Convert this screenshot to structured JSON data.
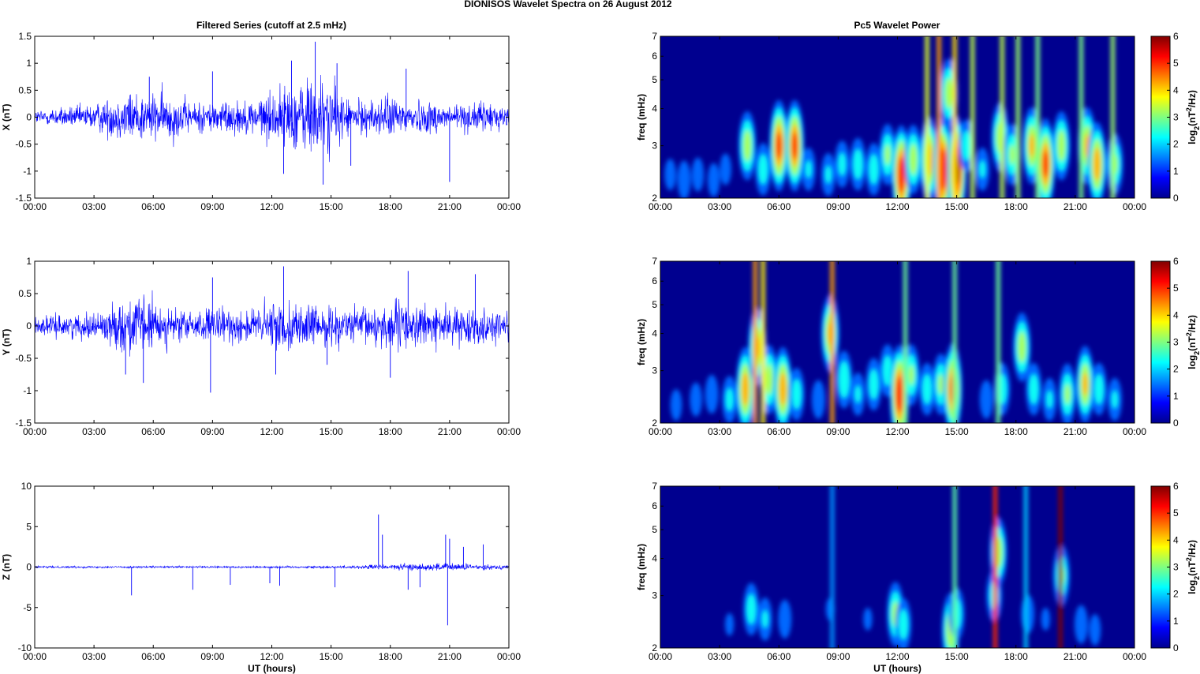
{
  "figure": {
    "suptitle": "DIONISOS Wavelet Spectra on 26 August    2012",
    "left_title": "Filtered Series (cutoff at 2.5 mHz)",
    "right_title": "Pc5 Wavelet Power",
    "xlabel": "UT (hours)"
  },
  "chart_data": [
    {
      "type": "line",
      "name": "x-series",
      "ylabel": "X (nT)",
      "xlim": [
        "00:00",
        "24:00"
      ],
      "xticks": [
        "00:00",
        "03:00",
        "06:00",
        "09:00",
        "12:00",
        "15:00",
        "18:00",
        "21:00",
        "00:00"
      ],
      "ylim": [
        -1.5,
        1.5
      ],
      "yticks": [
        "-1.5",
        "-1",
        "-0.5",
        "0",
        "0.5",
        "1",
        "1.5"
      ],
      "yticks_values": [
        -1.5,
        -1,
        -0.5,
        0,
        0.5,
        1,
        1.5
      ],
      "line_color": "#0000ff",
      "envelope": [
        [
          0,
          0.15
        ],
        [
          1,
          0.2
        ],
        [
          2,
          0.22
        ],
        [
          3,
          0.28
        ],
        [
          4,
          0.45
        ],
        [
          5,
          0.55
        ],
        [
          6,
          0.5
        ],
        [
          7,
          0.5
        ],
        [
          8,
          0.3
        ],
        [
          9,
          0.35
        ],
        [
          10,
          0.35
        ],
        [
          11,
          0.35
        ],
        [
          12,
          0.55
        ],
        [
          13,
          0.7
        ],
        [
          14,
          0.9
        ],
        [
          15,
          0.75
        ],
        [
          16,
          0.35
        ],
        [
          17,
          0.35
        ],
        [
          18,
          0.45
        ],
        [
          19,
          0.35
        ],
        [
          20,
          0.35
        ],
        [
          21,
          0.3
        ],
        [
          22,
          0.3
        ],
        [
          23,
          0.3
        ],
        [
          24,
          0.25
        ]
      ],
      "spikes": [
        [
          12.6,
          -1.05
        ],
        [
          14.2,
          1.4
        ],
        [
          14.6,
          -1.25
        ],
        [
          15.3,
          1.0
        ],
        [
          21.0,
          -1.2
        ],
        [
          9.0,
          0.85
        ],
        [
          5.8,
          0.75
        ],
        [
          13.0,
          1.05
        ],
        [
          16.0,
          -0.9
        ],
        [
          18.8,
          0.9
        ]
      ]
    },
    {
      "type": "line",
      "name": "y-series",
      "ylabel": "Y (nT)",
      "xlim": [
        "00:00",
        "24:00"
      ],
      "xticks": [
        "00:00",
        "03:00",
        "06:00",
        "09:00",
        "12:00",
        "15:00",
        "18:00",
        "21:00",
        "00:00"
      ],
      "ylim": [
        -1.5,
        1.0
      ],
      "yticks": [
        "-1.5",
        "-1",
        "-0.5",
        "0",
        "0.5",
        "1"
      ],
      "yticks_values": [
        -1.5,
        -1,
        -0.5,
        0,
        0.5,
        1
      ],
      "line_color": "#0000ff",
      "envelope": [
        [
          0,
          0.15
        ],
        [
          1,
          0.18
        ],
        [
          2,
          0.2
        ],
        [
          3,
          0.22
        ],
        [
          4,
          0.35
        ],
        [
          5,
          0.55
        ],
        [
          6,
          0.45
        ],
        [
          7,
          0.3
        ],
        [
          8,
          0.25
        ],
        [
          9,
          0.3
        ],
        [
          10,
          0.3
        ],
        [
          11,
          0.3
        ],
        [
          12,
          0.45
        ],
        [
          13,
          0.4
        ],
        [
          14,
          0.35
        ],
        [
          15,
          0.35
        ],
        [
          16,
          0.3
        ],
        [
          17,
          0.35
        ],
        [
          18,
          0.45
        ],
        [
          19,
          0.4
        ],
        [
          20,
          0.35
        ],
        [
          21,
          0.3
        ],
        [
          22,
          0.3
        ],
        [
          23,
          0.3
        ],
        [
          24,
          0.25
        ]
      ],
      "spikes": [
        [
          8.9,
          -1.03
        ],
        [
          12.6,
          0.92
        ],
        [
          5.5,
          -0.88
        ],
        [
          4.6,
          -0.75
        ],
        [
          18.0,
          -0.8
        ],
        [
          18.9,
          0.85
        ],
        [
          22.3,
          0.8
        ],
        [
          9.0,
          0.75
        ],
        [
          12.2,
          -0.75
        ],
        [
          14.8,
          -0.6
        ]
      ]
    },
    {
      "type": "line",
      "name": "z-series",
      "ylabel": "Z (nT)",
      "xlabel": "UT (hours)",
      "xlim": [
        "00:00",
        "24:00"
      ],
      "xticks": [
        "00:00",
        "03:00",
        "06:00",
        "09:00",
        "12:00",
        "15:00",
        "18:00",
        "21:00",
        "00:00"
      ],
      "ylim": [
        -10,
        10
      ],
      "yticks": [
        "-10",
        "-5",
        "0",
        "5",
        "10"
      ],
      "yticks_values": [
        -10,
        -5,
        0,
        5,
        10
      ],
      "line_color": "#0000ff",
      "envelope": [
        [
          0,
          0.15
        ],
        [
          12,
          0.15
        ],
        [
          16,
          0.2
        ],
        [
          17,
          0.35
        ],
        [
          18,
          0.4
        ],
        [
          20,
          0.5
        ],
        [
          21,
          0.6
        ],
        [
          22,
          0.4
        ],
        [
          24,
          0.3
        ]
      ],
      "spikes": [
        [
          4.9,
          -3.5
        ],
        [
          8.0,
          -2.8
        ],
        [
          9.9,
          -2.2
        ],
        [
          11.9,
          -2.0
        ],
        [
          12.4,
          -2.3
        ],
        [
          15.2,
          -2.5
        ],
        [
          17.4,
          6.5
        ],
        [
          17.6,
          4.0
        ],
        [
          18.9,
          -2.8
        ],
        [
          19.5,
          -2.5
        ],
        [
          20.8,
          4.0
        ],
        [
          20.9,
          -7.2
        ],
        [
          21.7,
          2.5
        ],
        [
          22.7,
          2.8
        ],
        [
          21.0,
          3.5
        ]
      ]
    },
    {
      "type": "heatmap",
      "name": "x-wavelet",
      "ylabel": "freq (mHz)",
      "yscale": "log",
      "ylim": [
        2,
        7
      ],
      "yticks": [
        "2",
        "3",
        "4",
        "5",
        "6",
        "7"
      ],
      "yticks_values": [
        2,
        3,
        4,
        5,
        6,
        7
      ],
      "xlim": [
        "00:00",
        "24:00"
      ],
      "xticks": [
        "00:00",
        "03:00",
        "06:00",
        "09:00",
        "12:00",
        "15:00",
        "18:00",
        "21:00",
        "00:00"
      ],
      "colorbar": {
        "label_base": "log",
        "label_sub": "2",
        "label_mid": "(nT",
        "label_sup": "2",
        "label_end": "/Hz)",
        "range": [
          0,
          6
        ],
        "ticks": [
          "0",
          "1",
          "2",
          "3",
          "4",
          "5",
          "6"
        ]
      },
      "blobs": [
        [
          0.5,
          2.4,
          1.5
        ],
        [
          1.2,
          2.3,
          1.8
        ],
        [
          1.9,
          2.4,
          1.6
        ],
        [
          2.7,
          2.3,
          1.6
        ],
        [
          3.3,
          2.5,
          1.5
        ],
        [
          4.4,
          3.0,
          3.5
        ],
        [
          5.2,
          2.5,
          2.5
        ],
        [
          6.0,
          3.0,
          5.0
        ],
        [
          6.8,
          3.0,
          5.0
        ],
        [
          7.5,
          2.5,
          2.0
        ],
        [
          8.5,
          2.4,
          2.0
        ],
        [
          9.2,
          2.6,
          2.2
        ],
        [
          10.0,
          2.6,
          2.5
        ],
        [
          10.8,
          2.5,
          2.5
        ],
        [
          11.5,
          2.8,
          3.0
        ],
        [
          12.2,
          2.4,
          5.5
        ],
        [
          12.8,
          2.7,
          3.5
        ],
        [
          13.6,
          2.7,
          4.5
        ],
        [
          14.3,
          2.5,
          5.8
        ],
        [
          15.0,
          2.5,
          6.0
        ],
        [
          14.6,
          4.5,
          3.5
        ],
        [
          15.5,
          3.0,
          2.5
        ],
        [
          16.3,
          2.5,
          2.0
        ],
        [
          17.2,
          3.2,
          3.5
        ],
        [
          17.8,
          2.8,
          3.0
        ],
        [
          18.8,
          3.0,
          4.0
        ],
        [
          19.5,
          2.6,
          5.0
        ],
        [
          20.3,
          3.0,
          3.5
        ],
        [
          21.6,
          3.0,
          4.0
        ],
        [
          22.1,
          2.6,
          4.5
        ],
        [
          23.0,
          2.6,
          3.0
        ]
      ],
      "streaks": [
        [
          13.5,
          3.2
        ],
        [
          14.1,
          4.0
        ],
        [
          14.9,
          3.6
        ],
        [
          15.8,
          3.0
        ],
        [
          17.3,
          3.0
        ],
        [
          18.1,
          2.8
        ],
        [
          19.1,
          2.6
        ],
        [
          21.3,
          2.6
        ],
        [
          22.9,
          2.8
        ]
      ]
    },
    {
      "type": "heatmap",
      "name": "y-wavelet",
      "ylabel": "freq (mHz)",
      "yscale": "log",
      "ylim": [
        2,
        7
      ],
      "yticks": [
        "2",
        "3",
        "4",
        "5",
        "6",
        "7"
      ],
      "yticks_values": [
        2,
        3,
        4,
        5,
        6,
        7
      ],
      "xlim": [
        "00:00",
        "24:00"
      ],
      "xticks": [
        "00:00",
        "03:00",
        "06:00",
        "09:00",
        "12:00",
        "15:00",
        "18:00",
        "21:00",
        "00:00"
      ],
      "colorbar": {
        "label_base": "log",
        "label_sub": "2",
        "label_mid": "(nT",
        "label_sup": "2",
        "label_end": "/Hz)",
        "range": [
          0,
          6
        ],
        "ticks": [
          "0",
          "1",
          "2",
          "3",
          "4",
          "5",
          "6"
        ]
      },
      "blobs": [
        [
          0.8,
          2.3,
          1.5
        ],
        [
          1.8,
          2.4,
          1.6
        ],
        [
          2.6,
          2.5,
          1.8
        ],
        [
          3.5,
          2.4,
          2.2
        ],
        [
          4.3,
          2.6,
          4.5
        ],
        [
          4.9,
          3.6,
          4.0
        ],
        [
          5.5,
          2.8,
          3.5
        ],
        [
          6.2,
          2.6,
          4.5
        ],
        [
          6.9,
          2.5,
          2.5
        ],
        [
          8.0,
          2.4,
          1.8
        ],
        [
          8.6,
          4.0,
          4.0
        ],
        [
          9.3,
          2.8,
          2.8
        ],
        [
          10.0,
          2.5,
          2.0
        ],
        [
          10.8,
          2.7,
          2.5
        ],
        [
          11.5,
          3.0,
          2.5
        ],
        [
          12.1,
          2.5,
          5.5
        ],
        [
          12.7,
          2.9,
          3.0
        ],
        [
          13.5,
          2.6,
          2.5
        ],
        [
          14.2,
          2.7,
          3.0
        ],
        [
          14.8,
          2.6,
          5.0
        ],
        [
          16.5,
          2.4,
          1.8
        ],
        [
          17.3,
          2.6,
          2.5
        ],
        [
          18.3,
          3.6,
          3.5
        ],
        [
          18.9,
          2.6,
          2.5
        ],
        [
          19.7,
          2.4,
          2.0
        ],
        [
          20.6,
          2.5,
          3.0
        ],
        [
          21.5,
          2.7,
          4.0
        ],
        [
          22.2,
          2.6,
          2.5
        ],
        [
          23.0,
          2.4,
          2.0
        ]
      ],
      "streaks": [
        [
          4.8,
          4.0
        ],
        [
          5.2,
          3.5
        ],
        [
          8.7,
          4.0
        ],
        [
          12.4,
          2.5
        ],
        [
          14.9,
          2.5
        ],
        [
          17.1,
          2.5
        ]
      ]
    },
    {
      "type": "heatmap",
      "name": "z-wavelet",
      "ylabel": "freq (mHz)",
      "xlabel": "UT (hours)",
      "yscale": "log",
      "ylim": [
        2,
        7
      ],
      "yticks": [
        "2",
        "3",
        "4",
        "5",
        "6",
        "7"
      ],
      "yticks_values": [
        2,
        3,
        4,
        5,
        6,
        7
      ],
      "xlim": [
        "00:00",
        "24:00"
      ],
      "xticks": [
        "00:00",
        "03:00",
        "06:00",
        "09:00",
        "12:00",
        "15:00",
        "18:00",
        "21:00",
        "00:00"
      ],
      "colorbar": {
        "label_base": "log",
        "label_sub": "2",
        "label_mid": "(nT",
        "label_sup": "2",
        "label_end": "/Hz)",
        "range": [
          0,
          6
        ],
        "ticks": [
          "0",
          "1",
          "2",
          "3",
          "4",
          "5",
          "6"
        ]
      },
      "blobs": [
        [
          3.5,
          2.4,
          1.2
        ],
        [
          4.6,
          2.7,
          2.5
        ],
        [
          5.3,
          2.5,
          2.0
        ],
        [
          6.3,
          2.5,
          1.8
        ],
        [
          8.6,
          2.7,
          1.2
        ],
        [
          10.5,
          2.5,
          1.2
        ],
        [
          11.9,
          2.6,
          3.2
        ],
        [
          12.3,
          2.4,
          2.5
        ],
        [
          14.7,
          2.3,
          3.8
        ],
        [
          15.0,
          2.6,
          2.5
        ],
        [
          16.9,
          3.0,
          2.5
        ],
        [
          17.1,
          4.2,
          3.5
        ],
        [
          18.6,
          2.6,
          1.8
        ],
        [
          19.5,
          2.5,
          1.2
        ],
        [
          20.3,
          3.5,
          3.0
        ],
        [
          21.3,
          2.4,
          1.8
        ],
        [
          22.0,
          2.3,
          1.5
        ]
      ],
      "streaks": [
        [
          16.95,
          4.8
        ],
        [
          20.25,
          6.0
        ],
        [
          14.9,
          2.4
        ],
        [
          8.7,
          1.2
        ],
        [
          18.5,
          1.5
        ]
      ]
    }
  ]
}
